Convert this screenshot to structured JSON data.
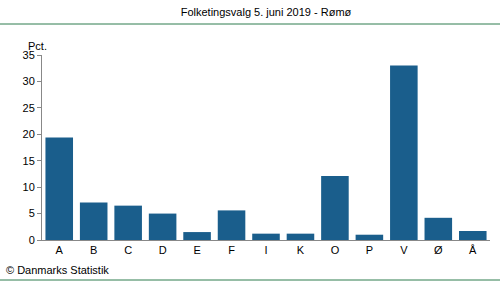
{
  "chart_data": {
    "type": "bar",
    "title": "Folketingsvalg 5. juni 2019 - Rømø",
    "y_label": "Pct.",
    "source": "© Danmarks Statistik",
    "categories": [
      "A",
      "B",
      "C",
      "D",
      "E",
      "F",
      "I",
      "K",
      "O",
      "P",
      "V",
      "Ø",
      "Å"
    ],
    "values": [
      19.4,
      7.1,
      6.5,
      5.0,
      1.5,
      5.6,
      1.2,
      1.2,
      12.1,
      1.0,
      33.0,
      4.2,
      1.7
    ],
    "color": "#1a5e8c",
    "ylim": [
      0,
      35
    ],
    "yticks": [
      0,
      5,
      10,
      15,
      20,
      25,
      30,
      35
    ],
    "grid": false
  }
}
